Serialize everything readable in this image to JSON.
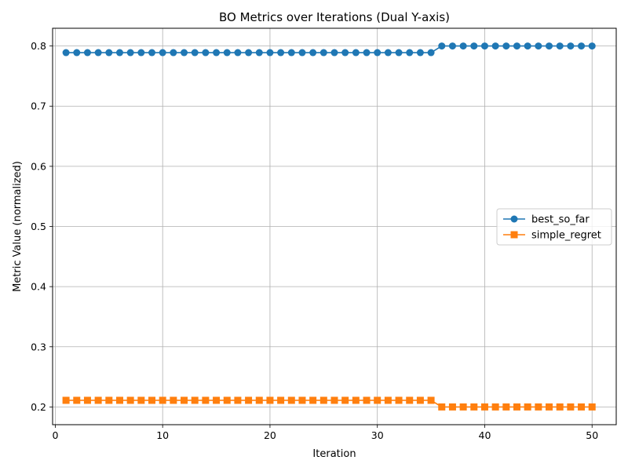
{
  "chart_data": {
    "type": "line",
    "title": "BO Metrics over Iterations (Dual Y-axis)",
    "xlabel": "Iteration",
    "ylabel": "Metric Value (normalized)",
    "xlim": [
      -0.25,
      52.25
    ],
    "ylim": [
      0.1705,
      0.8295
    ],
    "xticks": [
      0,
      10,
      20,
      30,
      40,
      50
    ],
    "yticks": [
      0.2,
      0.3,
      0.4,
      0.5,
      0.6,
      0.7,
      0.8
    ],
    "grid": true,
    "legend_position": "center-right",
    "x": [
      1,
      2,
      3,
      4,
      5,
      6,
      7,
      8,
      9,
      10,
      11,
      12,
      13,
      14,
      15,
      16,
      17,
      18,
      19,
      20,
      21,
      22,
      23,
      24,
      25,
      26,
      27,
      28,
      29,
      30,
      31,
      32,
      33,
      34,
      35,
      36,
      37,
      38,
      39,
      40,
      41,
      42,
      43,
      44,
      45,
      46,
      47,
      48,
      49,
      50
    ],
    "series": [
      {
        "name": "best_so_far",
        "color": "#1f77b4",
        "marker": "circle",
        "values": [
          0.789,
          0.789,
          0.789,
          0.789,
          0.789,
          0.789,
          0.789,
          0.789,
          0.789,
          0.789,
          0.789,
          0.789,
          0.789,
          0.789,
          0.789,
          0.789,
          0.789,
          0.789,
          0.789,
          0.789,
          0.789,
          0.789,
          0.789,
          0.789,
          0.789,
          0.789,
          0.789,
          0.789,
          0.789,
          0.789,
          0.789,
          0.789,
          0.789,
          0.789,
          0.789,
          0.8,
          0.8,
          0.8,
          0.8,
          0.8,
          0.8,
          0.8,
          0.8,
          0.8,
          0.8,
          0.8,
          0.8,
          0.8,
          0.8,
          0.8
        ]
      },
      {
        "name": "simple_regret",
        "color": "#ff7f0e",
        "marker": "square",
        "values": [
          0.211,
          0.211,
          0.211,
          0.211,
          0.211,
          0.211,
          0.211,
          0.211,
          0.211,
          0.211,
          0.211,
          0.211,
          0.211,
          0.211,
          0.211,
          0.211,
          0.211,
          0.211,
          0.211,
          0.211,
          0.211,
          0.211,
          0.211,
          0.211,
          0.211,
          0.211,
          0.211,
          0.211,
          0.211,
          0.211,
          0.211,
          0.211,
          0.211,
          0.211,
          0.211,
          0.2,
          0.2,
          0.2,
          0.2,
          0.2,
          0.2,
          0.2,
          0.2,
          0.2,
          0.2,
          0.2,
          0.2,
          0.2,
          0.2,
          0.2
        ]
      }
    ]
  }
}
